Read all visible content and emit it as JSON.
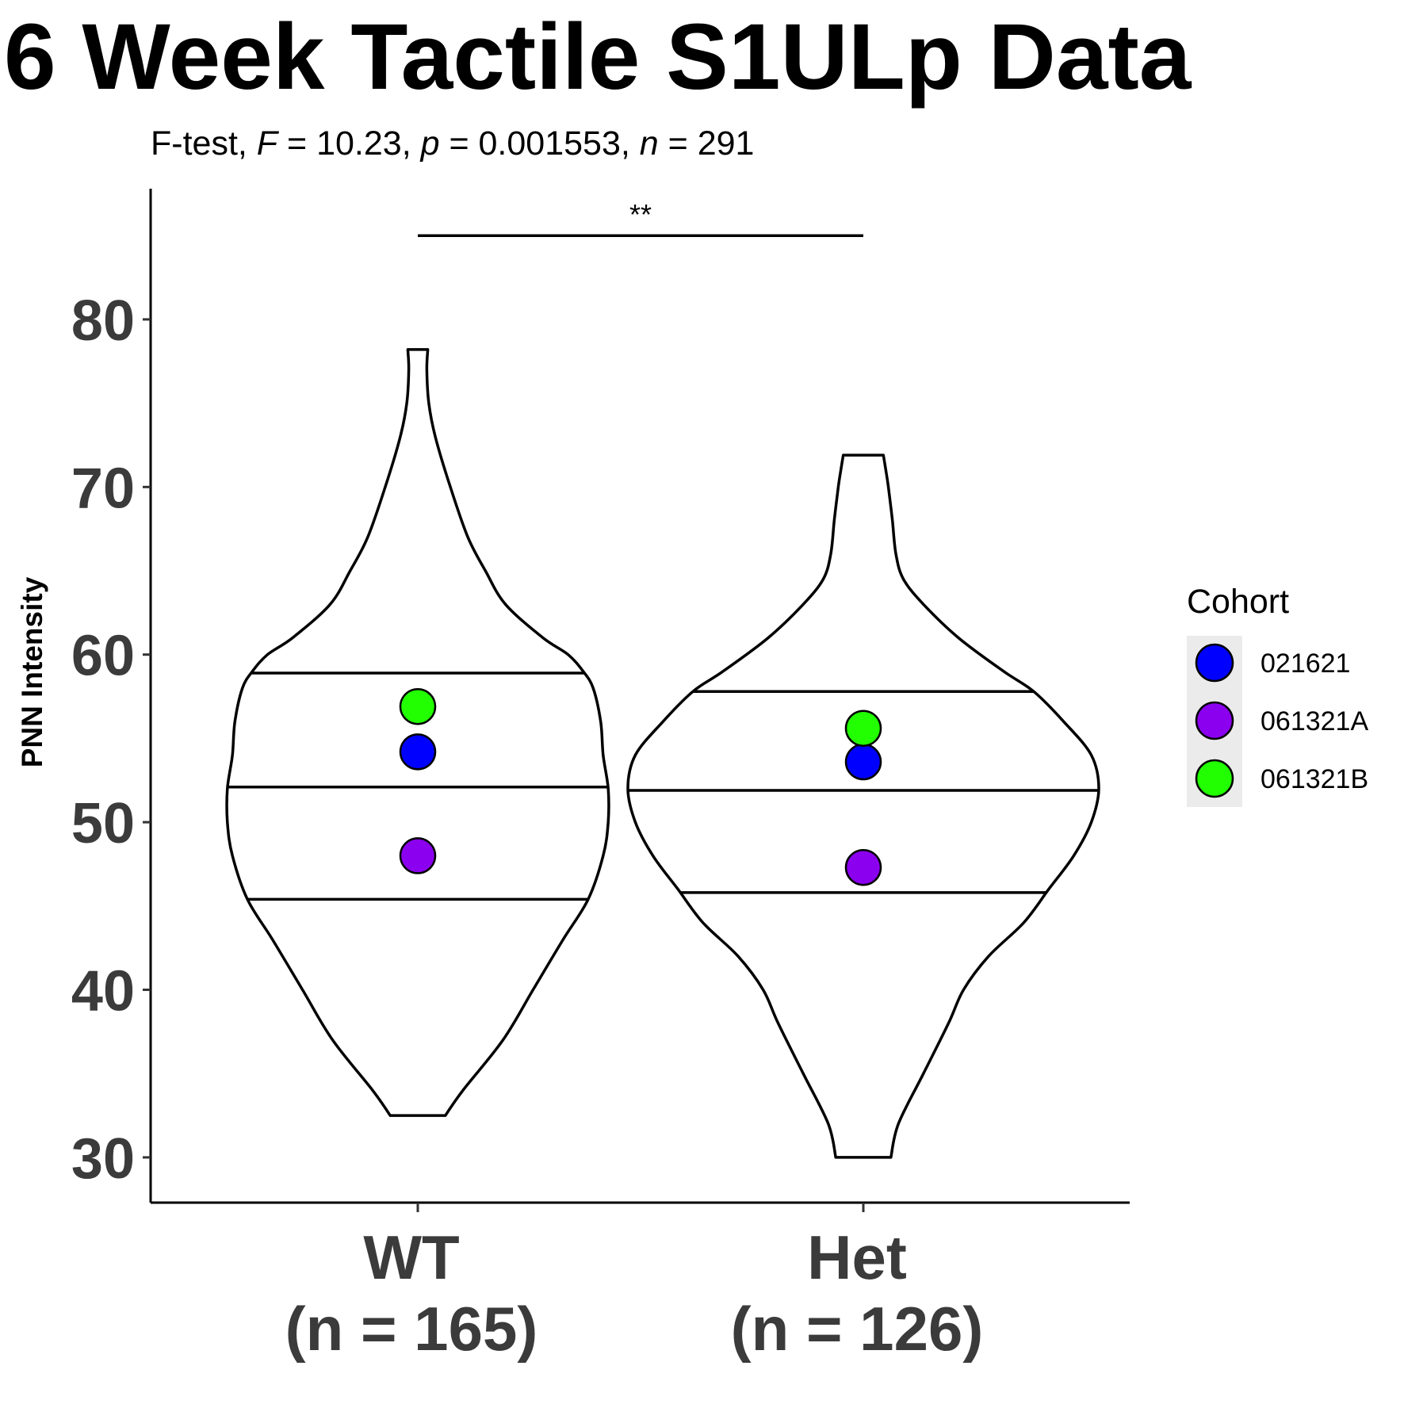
{
  "chart_data": {
    "type": "violin",
    "title": "6 Week Tactile S1ULp Data",
    "subtitle": {
      "prefix": "F-test, ",
      "F_label": "F",
      "F_value": " = 10.23, ",
      "p_label": "p",
      "p_value": " = 0.001553, ",
      "n_label": "n",
      "n_value": " = 291"
    },
    "ylabel": "PNN Intensity",
    "xlabel": "",
    "ylim": [
      27.3,
      87.8
    ],
    "yticks": [
      30,
      40,
      50,
      60,
      70,
      80
    ],
    "categories": [
      {
        "name": "WT",
        "n_label": "(n = 165)"
      },
      {
        "name": "Het",
        "n_label": "(n = 126)"
      }
    ],
    "violins": [
      {
        "group": "WT",
        "min": 32.5,
        "max": 78.2,
        "quantiles": [
          45.4,
          52.1,
          58.9
        ],
        "profile": [
          [
            32.5,
            0.055
          ],
          [
            34.0,
            0.09
          ],
          [
            37.0,
            0.17
          ],
          [
            40.0,
            0.23
          ],
          [
            43.0,
            0.29
          ],
          [
            45.4,
            0.34
          ],
          [
            48.0,
            0.37
          ],
          [
            50.0,
            0.38
          ],
          [
            52.0,
            0.38
          ],
          [
            54.0,
            0.37
          ],
          [
            56.0,
            0.365
          ],
          [
            58.0,
            0.35
          ],
          [
            59.0,
            0.33
          ],
          [
            60.0,
            0.3
          ],
          [
            61.0,
            0.25
          ],
          [
            63.0,
            0.175
          ],
          [
            65.0,
            0.135
          ],
          [
            67.0,
            0.1
          ],
          [
            70.0,
            0.065
          ],
          [
            73.0,
            0.035
          ],
          [
            75.0,
            0.022
          ],
          [
            77.0,
            0.018
          ],
          [
            78.2,
            0.02
          ]
        ]
      },
      {
        "group": "Het",
        "min": 30.0,
        "max": 71.9,
        "quantiles": [
          45.8,
          51.9,
          57.8
        ],
        "profile": [
          [
            30.0,
            0.055
          ],
          [
            32.0,
            0.07
          ],
          [
            35.0,
            0.12
          ],
          [
            38.0,
            0.17
          ],
          [
            40.0,
            0.2
          ],
          [
            42.0,
            0.25
          ],
          [
            44.0,
            0.32
          ],
          [
            46.0,
            0.37
          ],
          [
            48.0,
            0.42
          ],
          [
            50.0,
            0.455
          ],
          [
            52.0,
            0.47
          ],
          [
            54.0,
            0.455
          ],
          [
            56.0,
            0.4
          ],
          [
            57.8,
            0.34
          ],
          [
            59.0,
            0.28
          ],
          [
            61.0,
            0.19
          ],
          [
            63.0,
            0.12
          ],
          [
            64.5,
            0.08
          ],
          [
            66.0,
            0.065
          ],
          [
            68.0,
            0.058
          ],
          [
            70.0,
            0.05
          ],
          [
            71.0,
            0.045
          ],
          [
            71.9,
            0.04
          ]
        ]
      }
    ],
    "points": [
      {
        "group": "WT",
        "cohort": "021621",
        "value": 54.2
      },
      {
        "group": "WT",
        "cohort": "061321A",
        "value": 48.0
      },
      {
        "group": "WT",
        "cohort": "061321B",
        "value": 56.9
      },
      {
        "group": "Het",
        "cohort": "021621",
        "value": 53.6
      },
      {
        "group": "Het",
        "cohort": "061321A",
        "value": 47.3
      },
      {
        "group": "Het",
        "cohort": "061321B",
        "value": 55.6
      }
    ],
    "significance": {
      "from": "WT",
      "to": "Het",
      "label": "**",
      "y": 85.0
    },
    "legend": {
      "title": "Cohort",
      "position": "right",
      "entries": [
        {
          "label": "021621",
          "color": "#0000ff"
        },
        {
          "label": "061321A",
          "color": "#8b00ee"
        },
        {
          "label": "061321B",
          "color": "#22ff00"
        }
      ]
    },
    "grid": false
  }
}
